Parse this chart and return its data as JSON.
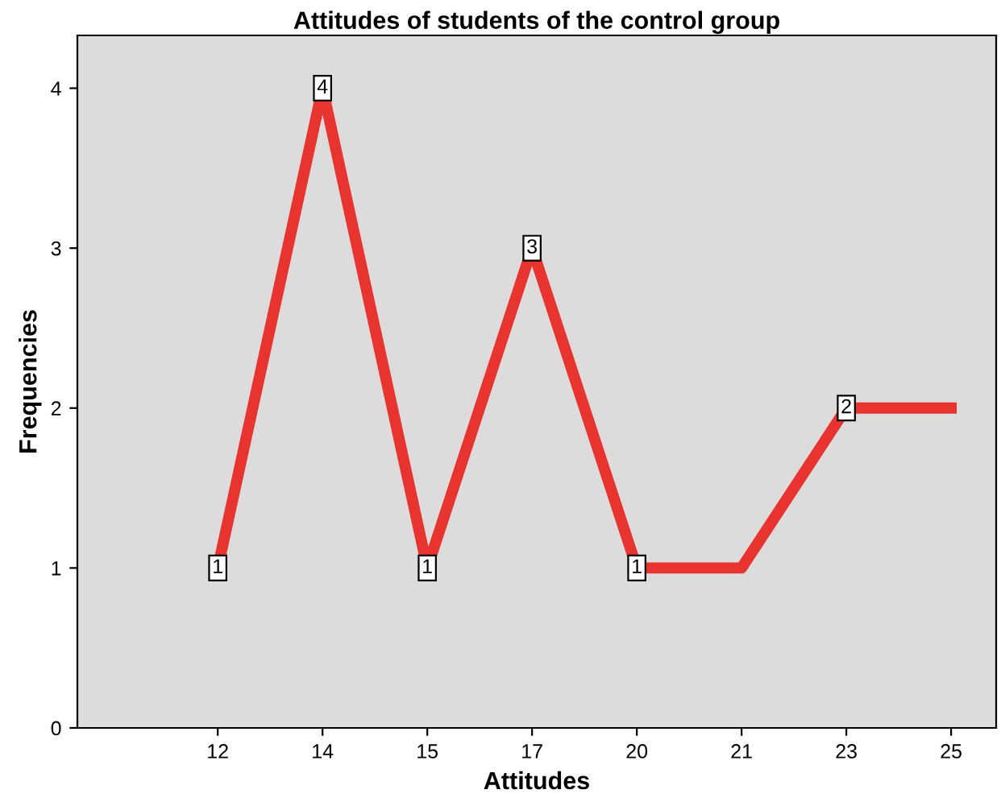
{
  "chart_data": {
    "type": "line",
    "title": "Attitudes of students of the control group",
    "xlabel": "Attitudes",
    "ylabel": "Frequencies",
    "categories": [
      "12",
      "14",
      "15",
      "17",
      "20",
      "21",
      "23",
      "25"
    ],
    "series": [
      {
        "color": "#e8332e",
        "values": [
          1,
          4,
          1,
          3,
          1,
          1,
          2,
          2
        ],
        "value_labels": [
          "1",
          "4",
          "1",
          "3",
          "1",
          null,
          "2",
          null
        ]
      }
    ],
    "ylim": [
      0,
      4.33
    ],
    "yticks": [
      0,
      1,
      2,
      3,
      4
    ],
    "grid": false,
    "legend": false,
    "line_style": "solid"
  }
}
